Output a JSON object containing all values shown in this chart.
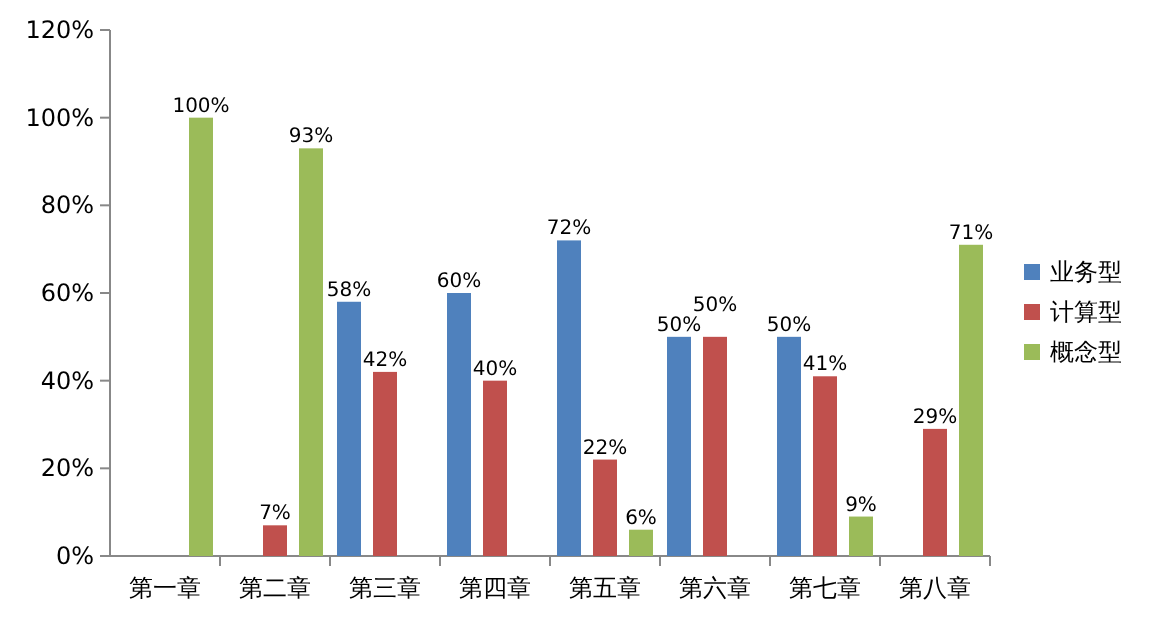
{
  "chart_data": {
    "type": "bar",
    "categories": [
      "第一章",
      "第二章",
      "第三章",
      "第四章",
      "第五章",
      "第六章",
      "第七章",
      "第八章"
    ],
    "series": [
      {
        "name": "业务型",
        "color": "#4f81bd",
        "values": [
          null,
          null,
          58,
          60,
          72,
          50,
          50,
          null
        ],
        "value_labels": [
          null,
          null,
          "58%",
          "60%",
          "72%",
          "50%",
          "50%",
          null
        ]
      },
      {
        "name": "计算型",
        "color": "#c0504d",
        "values": [
          null,
          7,
          42,
          40,
          22,
          50,
          41,
          29
        ],
        "value_labels": [
          null,
          "7%",
          "42%",
          "40%",
          "22%",
          "50%",
          "41%",
          "29%"
        ]
      },
      {
        "name": "概念型",
        "color": "#9bbb59",
        "values": [
          100,
          93,
          null,
          null,
          6,
          null,
          9,
          71
        ],
        "value_labels": [
          "100%",
          "93%",
          null,
          null,
          "6%",
          null,
          "9%",
          "71%"
        ]
      }
    ],
    "ylim": [
      0,
      120
    ],
    "yticks": [
      {
        "value": 0,
        "label": "0%"
      },
      {
        "value": 20,
        "label": "20%"
      },
      {
        "value": 40,
        "label": "40%"
      },
      {
        "value": 60,
        "label": "60%"
      },
      {
        "value": 80,
        "label": "80%"
      },
      {
        "value": 100,
        "label": "100%"
      },
      {
        "value": 120,
        "label": "120%"
      }
    ],
    "grid": false,
    "legend": "right"
  }
}
